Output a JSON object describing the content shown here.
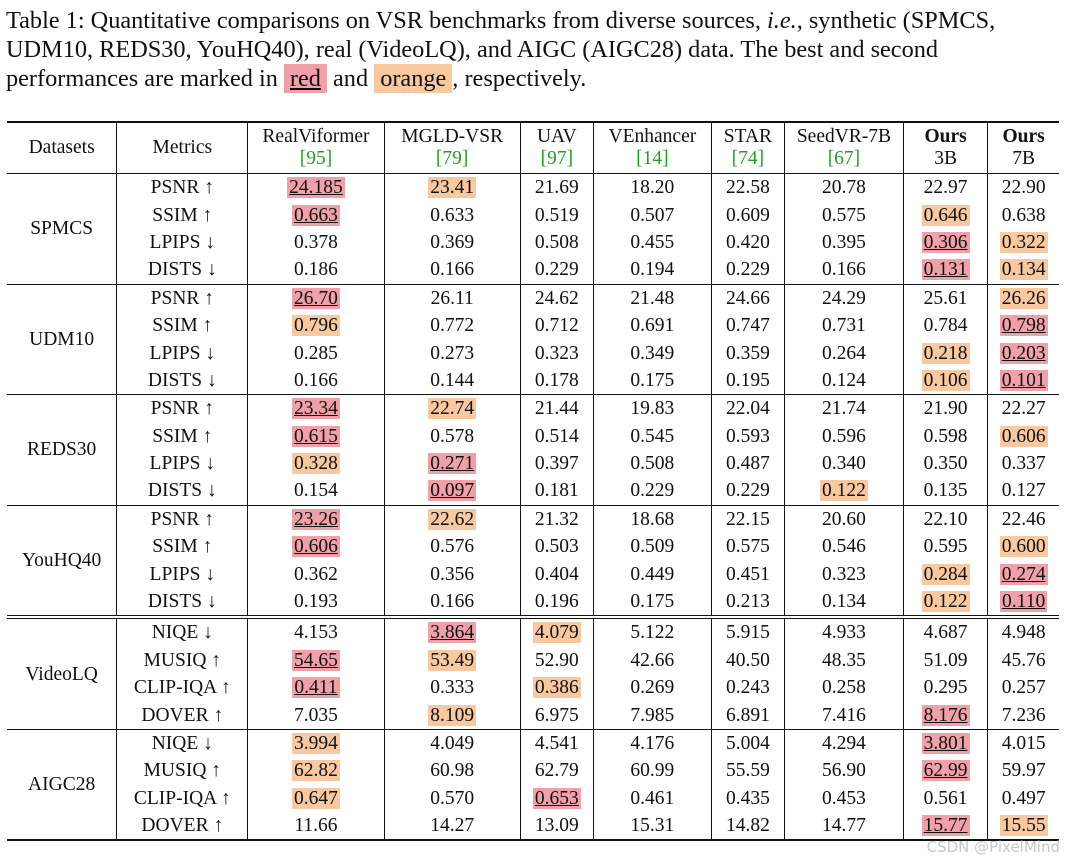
{
  "caption": {
    "prefix": "Table 1: Quantitative comparisons on VSR benchmarks from diverse sources, ",
    "ie": "i.e.",
    "middle": ", synthetic (SPMCS, UDM10, REDS30, YouHQ40), real (VideoLQ), and AIGC (AIGC28) data. The best and second performances are marked in ",
    "red_word": "red",
    "and_word": " and ",
    "orange_word": "orange",
    "suffix": ", respectively."
  },
  "headers": {
    "datasets": "Datasets",
    "metrics": "Metrics",
    "methods": [
      {
        "name": "RealViformer",
        "cite": "[95]"
      },
      {
        "name": "MGLD-VSR",
        "cite": "[79]"
      },
      {
        "name": "UAV",
        "cite": "[97]"
      },
      {
        "name": "VEnhancer",
        "cite": "[14]"
      },
      {
        "name": "STAR",
        "cite": "[74]"
      },
      {
        "name": "SeedVR-7B",
        "cite": "[67]"
      },
      {
        "name": "Ours",
        "sub": "3B"
      },
      {
        "name": "Ours",
        "sub": "7B"
      }
    ]
  },
  "groups": [
    {
      "dataset": "SPMCS",
      "rows": [
        {
          "metric": "PSNR ↑",
          "values": [
            "24.185",
            "23.41",
            "21.69",
            "18.20",
            "22.58",
            "20.78",
            "22.97",
            "22.90"
          ],
          "marks": [
            "r",
            "o",
            "",
            "",
            "",
            "",
            "",
            ""
          ]
        },
        {
          "metric": "SSIM ↑",
          "values": [
            "0.663",
            "0.633",
            "0.519",
            "0.507",
            "0.609",
            "0.575",
            "0.646",
            "0.638"
          ],
          "marks": [
            "r",
            "",
            "",
            "",
            "",
            "",
            "o",
            ""
          ]
        },
        {
          "metric": "LPIPS ↓",
          "values": [
            "0.378",
            "0.369",
            "0.508",
            "0.455",
            "0.420",
            "0.395",
            "0.306",
            "0.322"
          ],
          "marks": [
            "",
            "",
            "",
            "",
            "",
            "",
            "r",
            "o"
          ]
        },
        {
          "metric": "DISTS ↓",
          "values": [
            "0.186",
            "0.166",
            "0.229",
            "0.194",
            "0.229",
            "0.166",
            "0.131",
            "0.134"
          ],
          "marks": [
            "",
            "",
            "",
            "",
            "",
            "",
            "r",
            "o"
          ]
        }
      ]
    },
    {
      "dataset": "UDM10",
      "rows": [
        {
          "metric": "PSNR ↑",
          "values": [
            "26.70",
            "26.11",
            "24.62",
            "21.48",
            "24.66",
            "24.29",
            "25.61",
            "26.26"
          ],
          "marks": [
            "r",
            "",
            "",
            "",
            "",
            "",
            "",
            "o"
          ]
        },
        {
          "metric": "SSIM ↑",
          "values": [
            "0.796",
            "0.772",
            "0.712",
            "0.691",
            "0.747",
            "0.731",
            "0.784",
            "0.798"
          ],
          "marks": [
            "o",
            "",
            "",
            "",
            "",
            "",
            "",
            "r"
          ]
        },
        {
          "metric": "LPIPS ↓",
          "values": [
            "0.285",
            "0.273",
            "0.323",
            "0.349",
            "0.359",
            "0.264",
            "0.218",
            "0.203"
          ],
          "marks": [
            "",
            "",
            "",
            "",
            "",
            "",
            "o",
            "r"
          ]
        },
        {
          "metric": "DISTS ↓",
          "values": [
            "0.166",
            "0.144",
            "0.178",
            "0.175",
            "0.195",
            "0.124",
            "0.106",
            "0.101"
          ],
          "marks": [
            "",
            "",
            "",
            "",
            "",
            "",
            "o",
            "r"
          ]
        }
      ]
    },
    {
      "dataset": "REDS30",
      "rows": [
        {
          "metric": "PSNR ↑",
          "values": [
            "23.34",
            "22.74",
            "21.44",
            "19.83",
            "22.04",
            "21.74",
            "21.90",
            "22.27"
          ],
          "marks": [
            "r",
            "o",
            "",
            "",
            "",
            "",
            "",
            ""
          ]
        },
        {
          "metric": "SSIM ↑",
          "values": [
            "0.615",
            "0.578",
            "0.514",
            "0.545",
            "0.593",
            "0.596",
            "0.598",
            "0.606"
          ],
          "marks": [
            "r",
            "",
            "",
            "",
            "",
            "",
            "",
            "o"
          ]
        },
        {
          "metric": "LPIPS ↓",
          "values": [
            "0.328",
            "0.271",
            "0.397",
            "0.508",
            "0.487",
            "0.340",
            "0.350",
            "0.337"
          ],
          "marks": [
            "o",
            "r",
            "",
            "",
            "",
            "",
            "",
            ""
          ]
        },
        {
          "metric": "DISTS ↓",
          "values": [
            "0.154",
            "0.097",
            "0.181",
            "0.229",
            "0.229",
            "0.122",
            "0.135",
            "0.127"
          ],
          "marks": [
            "",
            "r",
            "",
            "",
            "",
            "o",
            "",
            ""
          ]
        }
      ]
    },
    {
      "dataset": "YouHQ40",
      "rows": [
        {
          "metric": "PSNR ↑",
          "values": [
            "23.26",
            "22.62",
            "21.32",
            "18.68",
            "22.15",
            "20.60",
            "22.10",
            "22.46"
          ],
          "marks": [
            "r",
            "o",
            "",
            "",
            "",
            "",
            "",
            ""
          ]
        },
        {
          "metric": "SSIM ↑",
          "values": [
            "0.606",
            "0.576",
            "0.503",
            "0.509",
            "0.575",
            "0.546",
            "0.595",
            "0.600"
          ],
          "marks": [
            "r",
            "",
            "",
            "",
            "",
            "",
            "",
            "o"
          ]
        },
        {
          "metric": "LPIPS ↓",
          "values": [
            "0.362",
            "0.356",
            "0.404",
            "0.449",
            "0.451",
            "0.323",
            "0.284",
            "0.274"
          ],
          "marks": [
            "",
            "",
            "",
            "",
            "",
            "",
            "o",
            "r"
          ]
        },
        {
          "metric": "DISTS ↓",
          "values": [
            "0.193",
            "0.166",
            "0.196",
            "0.175",
            "0.213",
            "0.134",
            "0.122",
            "0.110"
          ],
          "marks": [
            "",
            "",
            "",
            "",
            "",
            "",
            "o",
            "r"
          ]
        }
      ]
    },
    {
      "dataset": "VideoLQ",
      "rows": [
        {
          "metric": "NIQE ↓",
          "values": [
            "4.153",
            "3.864",
            "4.079",
            "5.122",
            "5.915",
            "4.933",
            "4.687",
            "4.948"
          ],
          "marks": [
            "",
            "r",
            "o",
            "",
            "",
            "",
            "",
            ""
          ]
        },
        {
          "metric": "MUSIQ ↑",
          "values": [
            "54.65",
            "53.49",
            "52.90",
            "42.66",
            "40.50",
            "48.35",
            "51.09",
            "45.76"
          ],
          "marks": [
            "r",
            "o",
            "",
            "",
            "",
            "",
            "",
            ""
          ]
        },
        {
          "metric": "CLIP-IQA ↑",
          "values": [
            "0.411",
            "0.333",
            "0.386",
            "0.269",
            "0.243",
            "0.258",
            "0.295",
            "0.257"
          ],
          "marks": [
            "r",
            "",
            "o",
            "",
            "",
            "",
            "",
            ""
          ]
        },
        {
          "metric": "DOVER ↑",
          "values": [
            "7.035",
            "8.109",
            "6.975",
            "7.985",
            "6.891",
            "7.416",
            "8.176",
            "7.236"
          ],
          "marks": [
            "",
            "o",
            "",
            "",
            "",
            "",
            "r",
            ""
          ]
        }
      ]
    },
    {
      "dataset": "AIGC28",
      "rows": [
        {
          "metric": "NIQE ↓",
          "values": [
            "3.994",
            "4.049",
            "4.541",
            "4.176",
            "5.004",
            "4.294",
            "3.801",
            "4.015"
          ],
          "marks": [
            "o",
            "",
            "",
            "",
            "",
            "",
            "r",
            ""
          ]
        },
        {
          "metric": "MUSIQ ↑",
          "values": [
            "62.82",
            "60.98",
            "62.79",
            "60.99",
            "55.59",
            "56.90",
            "62.99",
            "59.97"
          ],
          "marks": [
            "o",
            "",
            "",
            "",
            "",
            "",
            "r",
            ""
          ]
        },
        {
          "metric": "CLIP-IQA ↑",
          "values": [
            "0.647",
            "0.570",
            "0.653",
            "0.461",
            "0.435",
            "0.453",
            "0.561",
            "0.497"
          ],
          "marks": [
            "o",
            "",
            "r",
            "",
            "",
            "",
            "",
            ""
          ]
        },
        {
          "metric": "DOVER ↑",
          "values": [
            "11.66",
            "14.27",
            "13.09",
            "15.31",
            "14.82",
            "14.77",
            "15.77",
            "15.55"
          ],
          "marks": [
            "",
            "",
            "",
            "",
            "",
            "",
            "r",
            "o"
          ]
        }
      ]
    }
  ],
  "watermark": "CSDN @PixelMind",
  "colors": {
    "red_highlight": "#f0a0a8",
    "orange_highlight": "#f8c8a0",
    "cite_green": "#20a020"
  }
}
